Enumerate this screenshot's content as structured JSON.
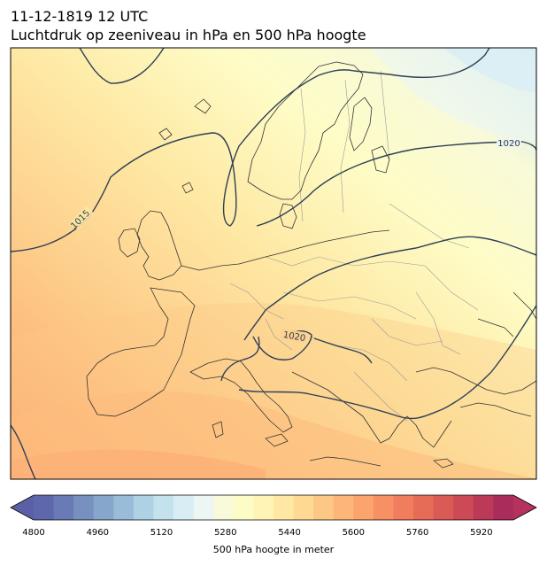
{
  "header": {
    "datetime": "11-12-1819 12 UTC",
    "title": "Luchtdruk op zeeniveau in hPa en 500 hPa hoogte"
  },
  "isobars": [
    {
      "label": "1015"
    },
    {
      "label": "1020"
    },
    {
      "label": "1020"
    }
  ],
  "colorbar": {
    "label": "500 hPa hoogte in meter",
    "min": 4800,
    "max": 6000,
    "ticks": [
      "4800",
      "4960",
      "5120",
      "5280",
      "5440",
      "5600",
      "5760",
      "5920"
    ],
    "colors": [
      "#5e66ac",
      "#6a7ab6",
      "#7890c0",
      "#86a6cb",
      "#99bcd8",
      "#aed2e4",
      "#c3e2ee",
      "#d9eef4",
      "#ecf6f2",
      "#f8fad9",
      "#fefcc6",
      "#fff4b5",
      "#fee8a3",
      "#fdd994",
      "#fdc886",
      "#fdb679",
      "#fca46e",
      "#f79165",
      "#f07e5e",
      "#e66c58",
      "#da5a55",
      "#cc4955",
      "#bc3a57",
      "#a82d5a"
    ]
  },
  "colors": {
    "isobar_line": "#2e4057",
    "coastline": "#333333",
    "border": "#9a9a9a"
  }
}
